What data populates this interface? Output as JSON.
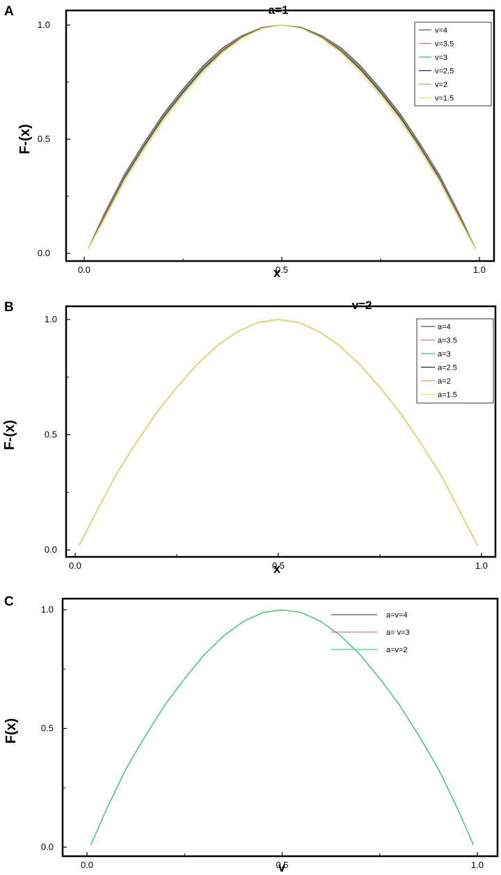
{
  "chart_data": [
    {
      "panel": "A",
      "type": "line",
      "title": "a=1",
      "ylabel": "F-(x)",
      "xlabel": "x",
      "xlim": [
        0,
        1
      ],
      "ylim": [
        0,
        1
      ],
      "xticks": [
        "0.0",
        "0.5",
        "1.0"
      ],
      "yticks": [
        "0.0",
        "0.5",
        "1.0"
      ],
      "legend_position": "top-right",
      "series": [
        {
          "name": "v=4",
          "color": "#555555",
          "x": [
            0.01,
            0.05,
            0.1,
            0.15,
            0.2,
            0.25,
            0.3,
            0.35,
            0.4,
            0.45,
            0.5,
            0.55,
            0.6,
            0.65,
            0.7,
            0.75,
            0.8,
            0.85,
            0.9,
            0.95,
            0.99
          ],
          "y": [
            0.02,
            0.17,
            0.34,
            0.48,
            0.61,
            0.72,
            0.82,
            0.9,
            0.955,
            0.99,
            1.0,
            0.99,
            0.955,
            0.9,
            0.82,
            0.72,
            0.61,
            0.48,
            0.34,
            0.17,
            0.02
          ]
        },
        {
          "name": "v=3.5",
          "color": "#e07070",
          "x": [
            0.01,
            0.05,
            0.1,
            0.15,
            0.2,
            0.25,
            0.3,
            0.35,
            0.4,
            0.45,
            0.5,
            0.55,
            0.6,
            0.65,
            0.7,
            0.75,
            0.8,
            0.85,
            0.9,
            0.95,
            0.99
          ],
          "y": [
            0.02,
            0.165,
            0.335,
            0.475,
            0.605,
            0.715,
            0.815,
            0.895,
            0.953,
            0.989,
            1.0,
            0.989,
            0.953,
            0.895,
            0.815,
            0.715,
            0.605,
            0.475,
            0.335,
            0.165,
            0.02
          ]
        },
        {
          "name": "v=3",
          "color": "#22cc66",
          "x": [
            0.01,
            0.05,
            0.1,
            0.15,
            0.2,
            0.25,
            0.3,
            0.35,
            0.4,
            0.45,
            0.5,
            0.55,
            0.6,
            0.65,
            0.7,
            0.75,
            0.8,
            0.85,
            0.9,
            0.95,
            0.99
          ],
          "y": [
            0.02,
            0.16,
            0.33,
            0.47,
            0.6,
            0.71,
            0.81,
            0.89,
            0.95,
            0.988,
            1.0,
            0.988,
            0.95,
            0.89,
            0.81,
            0.71,
            0.6,
            0.47,
            0.33,
            0.16,
            0.02
          ]
        },
        {
          "name": "v=2.5",
          "color": "#222288",
          "x": [
            0.01,
            0.05,
            0.1,
            0.15,
            0.2,
            0.25,
            0.3,
            0.35,
            0.4,
            0.45,
            0.5,
            0.55,
            0.6,
            0.65,
            0.7,
            0.75,
            0.8,
            0.85,
            0.9,
            0.95,
            0.99
          ],
          "y": [
            0.02,
            0.157,
            0.325,
            0.465,
            0.595,
            0.705,
            0.805,
            0.887,
            0.948,
            0.987,
            1.0,
            0.987,
            0.948,
            0.887,
            0.805,
            0.705,
            0.595,
            0.465,
            0.325,
            0.157,
            0.02
          ]
        },
        {
          "name": "v=2",
          "color": "#c8a060",
          "x": [
            0.01,
            0.05,
            0.1,
            0.15,
            0.2,
            0.25,
            0.3,
            0.35,
            0.4,
            0.45,
            0.5,
            0.55,
            0.6,
            0.65,
            0.7,
            0.75,
            0.8,
            0.85,
            0.9,
            0.95,
            0.99
          ],
          "y": [
            0.02,
            0.154,
            0.32,
            0.46,
            0.59,
            0.7,
            0.8,
            0.884,
            0.946,
            0.986,
            1.0,
            0.986,
            0.946,
            0.884,
            0.8,
            0.7,
            0.59,
            0.46,
            0.32,
            0.154,
            0.02
          ]
        },
        {
          "name": "v=1.5",
          "color": "#f5e05a",
          "x": [
            0.01,
            0.05,
            0.1,
            0.15,
            0.2,
            0.25,
            0.3,
            0.35,
            0.4,
            0.45,
            0.5,
            0.55,
            0.6,
            0.65,
            0.7,
            0.75,
            0.8,
            0.85,
            0.9,
            0.95,
            0.99
          ],
          "y": [
            0.02,
            0.145,
            0.31,
            0.45,
            0.58,
            0.69,
            0.79,
            0.878,
            0.943,
            0.985,
            1.0,
            0.985,
            0.943,
            0.878,
            0.79,
            0.69,
            0.58,
            0.45,
            0.31,
            0.145,
            0.02
          ]
        }
      ]
    },
    {
      "panel": "B",
      "type": "line",
      "title": "v=2",
      "ylabel": "F-(x)",
      "xlabel": "x",
      "xlim": [
        0,
        1
      ],
      "ylim": [
        0,
        1
      ],
      "xticks": [
        "0.0",
        "0.5",
        "1.0"
      ],
      "yticks": [
        "0.0",
        "0.5",
        "1.0"
      ],
      "legend_position": "top-right",
      "series": [
        {
          "name": "a=4",
          "color": "#555555",
          "x": [
            0.01,
            0.05,
            0.1,
            0.15,
            0.2,
            0.25,
            0.3,
            0.35,
            0.4,
            0.45,
            0.5,
            0.55,
            0.6,
            0.65,
            0.7,
            0.75,
            0.8,
            0.85,
            0.9,
            0.95,
            0.99
          ],
          "y": [
            0.02,
            0.157,
            0.325,
            0.465,
            0.595,
            0.705,
            0.805,
            0.887,
            0.948,
            0.987,
            1.0,
            0.987,
            0.948,
            0.887,
            0.805,
            0.705,
            0.595,
            0.465,
            0.325,
            0.157,
            0.02
          ]
        },
        {
          "name": "a=3.5",
          "color": "#e07070",
          "x": [
            0.01,
            0.05,
            0.1,
            0.15,
            0.2,
            0.25,
            0.3,
            0.35,
            0.4,
            0.45,
            0.5,
            0.55,
            0.6,
            0.65,
            0.7,
            0.75,
            0.8,
            0.85,
            0.9,
            0.95,
            0.99
          ],
          "y": [
            0.02,
            0.157,
            0.325,
            0.465,
            0.595,
            0.705,
            0.805,
            0.887,
            0.948,
            0.987,
            1.0,
            0.987,
            0.948,
            0.887,
            0.805,
            0.705,
            0.595,
            0.465,
            0.325,
            0.157,
            0.02
          ]
        },
        {
          "name": "a=3",
          "color": "#22cc66",
          "x": [
            0.01,
            0.05,
            0.1,
            0.15,
            0.2,
            0.25,
            0.3,
            0.35,
            0.4,
            0.45,
            0.5,
            0.55,
            0.6,
            0.65,
            0.7,
            0.75,
            0.8,
            0.85,
            0.9,
            0.95,
            0.99
          ],
          "y": [
            0.02,
            0.157,
            0.325,
            0.465,
            0.595,
            0.705,
            0.805,
            0.887,
            0.948,
            0.987,
            1.0,
            0.987,
            0.948,
            0.887,
            0.805,
            0.705,
            0.595,
            0.465,
            0.325,
            0.157,
            0.02
          ]
        },
        {
          "name": "a=2.5",
          "color": "#222244",
          "x": [
            0.01,
            0.05,
            0.1,
            0.15,
            0.2,
            0.25,
            0.3,
            0.35,
            0.4,
            0.45,
            0.5,
            0.55,
            0.6,
            0.65,
            0.7,
            0.75,
            0.8,
            0.85,
            0.9,
            0.95,
            0.99
          ],
          "y": [
            0.02,
            0.157,
            0.325,
            0.465,
            0.595,
            0.705,
            0.805,
            0.887,
            0.948,
            0.987,
            1.0,
            0.987,
            0.948,
            0.887,
            0.805,
            0.705,
            0.595,
            0.465,
            0.325,
            0.157,
            0.02
          ]
        },
        {
          "name": "a=2",
          "color": "#d8a050",
          "x": [
            0.01,
            0.05,
            0.1,
            0.15,
            0.2,
            0.25,
            0.3,
            0.35,
            0.4,
            0.45,
            0.5,
            0.55,
            0.6,
            0.65,
            0.7,
            0.75,
            0.8,
            0.85,
            0.9,
            0.95,
            0.99
          ],
          "y": [
            0.02,
            0.157,
            0.325,
            0.465,
            0.595,
            0.705,
            0.805,
            0.887,
            0.948,
            0.987,
            1.0,
            0.987,
            0.948,
            0.887,
            0.805,
            0.705,
            0.595,
            0.465,
            0.325,
            0.157,
            0.02
          ]
        },
        {
          "name": "a=1.5",
          "color": "#f5e05a",
          "x": [
            0.01,
            0.05,
            0.1,
            0.15,
            0.2,
            0.25,
            0.3,
            0.35,
            0.4,
            0.45,
            0.5,
            0.55,
            0.6,
            0.65,
            0.7,
            0.75,
            0.8,
            0.85,
            0.9,
            0.95,
            0.99
          ],
          "y": [
            0.02,
            0.157,
            0.325,
            0.465,
            0.595,
            0.705,
            0.805,
            0.887,
            0.948,
            0.987,
            1.0,
            0.987,
            0.948,
            0.887,
            0.805,
            0.705,
            0.595,
            0.465,
            0.325,
            0.157,
            0.02
          ]
        }
      ]
    },
    {
      "panel": "C",
      "type": "line",
      "title": "",
      "ylabel": "F(x)",
      "xlabel": "v",
      "xlim": [
        0,
        1
      ],
      "ylim": [
        0,
        1
      ],
      "xticks": [
        "0.0",
        "0.5",
        "1.0"
      ],
      "yticks": [
        "0.0",
        "0.5",
        "1.0"
      ],
      "legend_position": "top-right",
      "series": [
        {
          "name": "a=v=4",
          "color": "#555555",
          "x": [
            0.01,
            0.05,
            0.1,
            0.15,
            0.2,
            0.25,
            0.3,
            0.35,
            0.4,
            0.45,
            0.5,
            0.55,
            0.6,
            0.65,
            0.7,
            0.75,
            0.8,
            0.85,
            0.9,
            0.95,
            0.99
          ],
          "y": [
            0.01,
            0.16,
            0.33,
            0.47,
            0.6,
            0.71,
            0.81,
            0.89,
            0.95,
            0.988,
            1.0,
            0.988,
            0.95,
            0.89,
            0.81,
            0.71,
            0.6,
            0.47,
            0.33,
            0.16,
            0.01
          ]
        },
        {
          "name": "a= v=3",
          "color": "#e07070",
          "x": [
            0.01,
            0.05,
            0.1,
            0.15,
            0.2,
            0.25,
            0.3,
            0.35,
            0.4,
            0.45,
            0.5,
            0.55,
            0.6,
            0.65,
            0.7,
            0.75,
            0.8,
            0.85,
            0.9,
            0.95,
            0.99
          ],
          "y": [
            0.01,
            0.16,
            0.33,
            0.47,
            0.6,
            0.71,
            0.81,
            0.89,
            0.95,
            0.988,
            1.0,
            0.988,
            0.95,
            0.89,
            0.81,
            0.71,
            0.6,
            0.47,
            0.33,
            0.16,
            0.01
          ]
        },
        {
          "name": "a=v=2",
          "color": "#33dd77",
          "x": [
            0.01,
            0.05,
            0.1,
            0.15,
            0.2,
            0.25,
            0.3,
            0.35,
            0.4,
            0.45,
            0.5,
            0.55,
            0.6,
            0.65,
            0.7,
            0.75,
            0.8,
            0.85,
            0.9,
            0.95,
            0.99
          ],
          "y": [
            0.01,
            0.16,
            0.33,
            0.47,
            0.6,
            0.71,
            0.81,
            0.89,
            0.95,
            0.988,
            1.0,
            0.988,
            0.95,
            0.89,
            0.81,
            0.71,
            0.6,
            0.47,
            0.33,
            0.16,
            0.01
          ]
        }
      ]
    }
  ]
}
